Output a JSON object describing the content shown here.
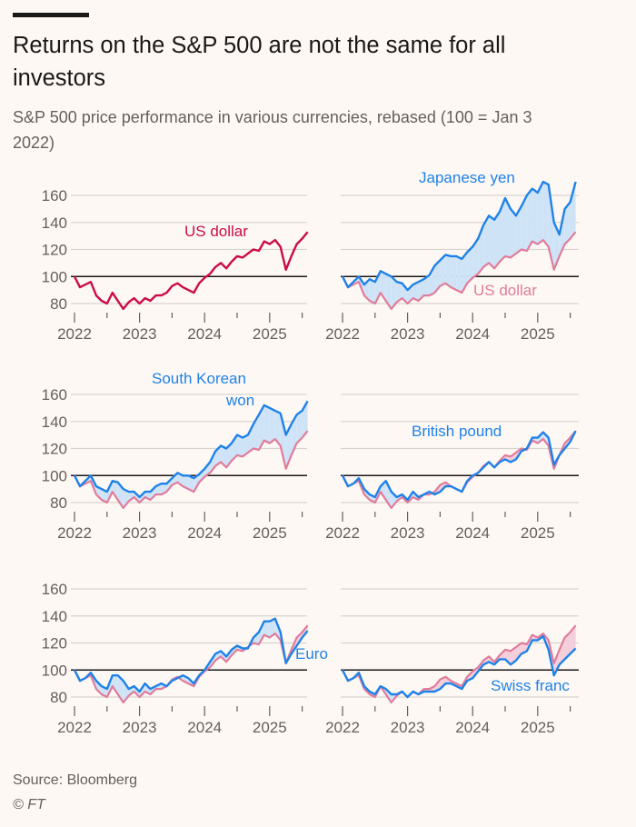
{
  "header": {
    "title": "Returns on the S&P 500 are not the same for all investors",
    "subtitle": "S&P 500 price performance in various currencies, rebased (100 = Jan 3 2022)"
  },
  "footer": {
    "source": "Source: Bloomberg",
    "copyright": "© FT"
  },
  "colors": {
    "us_dollar_main": "#cc0a4a",
    "us_dollar_compare": "#e07c9c",
    "currency": "#1f82e8",
    "fill_above": "#cfe3f7",
    "fill_below": "#f4cfdb",
    "grid": "#d9d3ce",
    "baseline": "#1a1817",
    "background": "#fdf8f4"
  },
  "chart_data": {
    "type": "line",
    "layout": "small-multiples 3x2",
    "ylim": [
      75,
      170
    ],
    "yticks": [
      "80",
      "100",
      "120",
      "140",
      "160"
    ],
    "xticks": [
      "2022",
      "2023",
      "2024",
      "2025"
    ],
    "baseline": 100,
    "grid": true,
    "x": [
      "2022-01",
      "2022-02",
      "2022-03",
      "2022-04",
      "2022-05",
      "2022-06",
      "2022-07",
      "2022-08",
      "2022-09",
      "2022-10",
      "2022-11",
      "2022-12",
      "2023-01",
      "2023-02",
      "2023-03",
      "2023-04",
      "2023-05",
      "2023-06",
      "2023-07",
      "2023-08",
      "2023-09",
      "2023-10",
      "2023-11",
      "2023-12",
      "2024-01",
      "2024-02",
      "2024-03",
      "2024-04",
      "2024-05",
      "2024-06",
      "2024-07",
      "2024-08",
      "2024-09",
      "2024-10",
      "2024-11",
      "2024-12",
      "2025-01",
      "2025-02",
      "2025-03",
      "2025-04",
      "2025-05",
      "2025-06",
      "2025-07",
      "2025-08"
    ],
    "us_dollar": [
      100,
      92,
      94,
      96,
      86,
      82,
      80,
      88,
      82,
      76,
      81,
      84,
      80,
      84,
      82,
      86,
      86,
      88,
      93,
      95,
      92,
      90,
      88,
      95,
      99,
      102,
      107,
      110,
      106,
      111,
      115,
      114,
      117,
      120,
      119,
      126,
      124,
      127,
      122,
      105,
      115,
      124,
      128,
      133
    ],
    "panels": [
      {
        "label": "US dollar",
        "series": "us_dollar",
        "values": null
      },
      {
        "label": "Japanese yen",
        "compare_label": "US dollar",
        "values": [
          100,
          92,
          96,
          100,
          94,
          98,
          96,
          104,
          102,
          100,
          96,
          95,
          90,
          94,
          96,
          98,
          101,
          108,
          112,
          116,
          115,
          115,
          113,
          118,
          122,
          128,
          138,
          145,
          142,
          148,
          158,
          150,
          145,
          152,
          160,
          165,
          162,
          170,
          168,
          140,
          131,
          150,
          155,
          170
        ]
      },
      {
        "label": "South Korean",
        "label_line2": "won",
        "values": [
          100,
          92,
          96,
          100,
          92,
          90,
          88,
          96,
          95,
          90,
          88,
          88,
          84,
          88,
          88,
          92,
          94,
          94,
          98,
          102,
          100,
          100,
          98,
          101,
          105,
          110,
          118,
          122,
          120,
          124,
          130,
          128,
          130,
          138,
          145,
          152,
          150,
          148,
          146,
          130,
          138,
          145,
          148,
          155
        ]
      },
      {
        "label": "British pound",
        "values": [
          100,
          92,
          94,
          98,
          90,
          86,
          84,
          92,
          96,
          88,
          84,
          86,
          82,
          88,
          84,
          86,
          88,
          86,
          88,
          92,
          92,
          90,
          88,
          96,
          100,
          102,
          106,
          110,
          106,
          110,
          112,
          110,
          112,
          118,
          120,
          128,
          128,
          132,
          128,
          108,
          115,
          120,
          125,
          133
        ]
      },
      {
        "label": "Euro",
        "values": [
          100,
          92,
          94,
          98,
          92,
          88,
          86,
          96,
          96,
          92,
          86,
          88,
          84,
          90,
          86,
          88,
          90,
          88,
          92,
          94,
          96,
          94,
          90,
          96,
          100,
          106,
          112,
          114,
          110,
          115,
          118,
          116,
          116,
          124,
          128,
          136,
          136,
          138,
          128,
          105,
          112,
          118,
          124,
          129
        ]
      },
      {
        "label": "Swiss franc",
        "values": [
          100,
          92,
          94,
          98,
          88,
          84,
          82,
          88,
          86,
          82,
          82,
          84,
          80,
          84,
          82,
          84,
          84,
          84,
          86,
          90,
          90,
          88,
          86,
          92,
          94,
          99,
          104,
          106,
          104,
          108,
          108,
          104,
          107,
          112,
          114,
          122,
          122,
          125,
          115,
          96,
          104,
          108,
          112,
          116
        ]
      }
    ]
  }
}
